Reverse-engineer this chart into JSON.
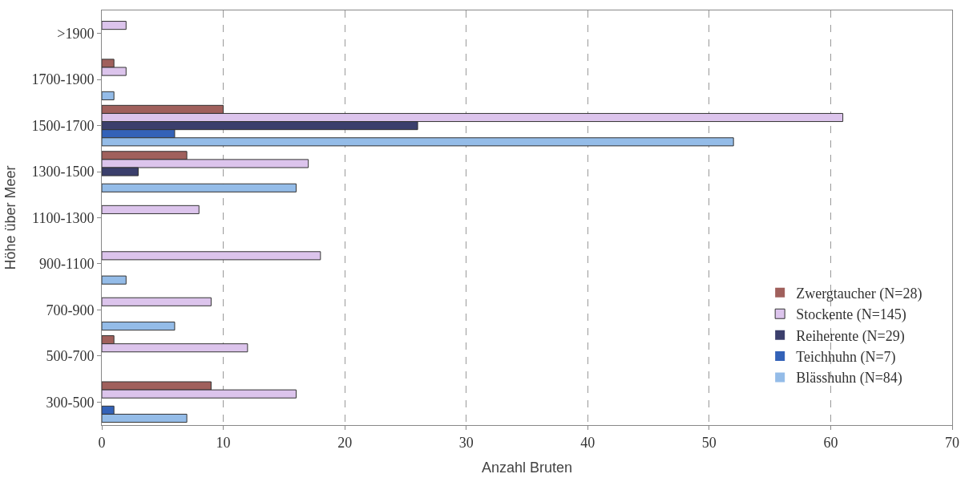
{
  "chart_data": {
    "type": "bar",
    "orientation": "horizontal",
    "xlabel": "Anzahl Bruten",
    "ylabel": "Höhe über Meer",
    "categories": [
      ">1900",
      "1700-1900",
      "1500-1700",
      "1300-1500",
      "1100-1300",
      "900-1100",
      "700-900",
      "500-700",
      "300-500"
    ],
    "series": [
      {
        "name": "Zwergtaucher (N=28)",
        "color": "#a0605c",
        "values": [
          0,
          1,
          10,
          7,
          0,
          0,
          0,
          1,
          9
        ]
      },
      {
        "name": "Stockente (N=145)",
        "color": "#dcc4ec",
        "values": [
          2,
          2,
          61,
          17,
          8,
          18,
          9,
          12,
          16
        ]
      },
      {
        "name": "Reiherente (N=29)",
        "color": "#3b3f6c",
        "values": [
          0,
          0,
          26,
          3,
          0,
          0,
          0,
          0,
          0
        ]
      },
      {
        "name": "Teichhuhn (N=7)",
        "color": "#3362b8",
        "values": [
          0,
          0,
          6,
          0,
          0,
          0,
          0,
          0,
          1
        ]
      },
      {
        "name": "Blässhuhn (N=84)",
        "color": "#94bce8",
        "values": [
          0,
          1,
          52,
          16,
          0,
          2,
          6,
          0,
          7
        ]
      }
    ],
    "xlim": [
      0,
      70
    ],
    "xticks": [
      0,
      10,
      20,
      30,
      40,
      50,
      60,
      70
    ],
    "grid": "x",
    "legend": "right"
  }
}
